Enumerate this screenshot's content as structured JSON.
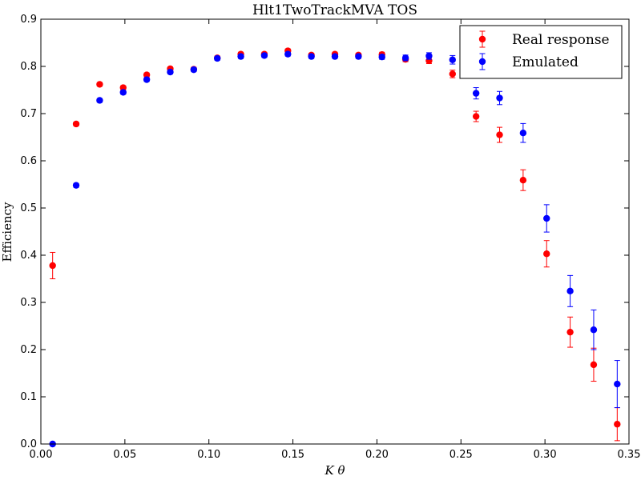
{
  "chart_data": {
    "type": "scatter",
    "title": "Hlt1TwoTrackMVA TOS",
    "xlabel": "K θ",
    "ylabel": "Efficiency",
    "xlim": [
      0.0,
      0.35
    ],
    "ylim": [
      0.0,
      0.9
    ],
    "x_ticks": [
      "0.00",
      "0.05",
      "0.10",
      "0.15",
      "0.20",
      "0.25",
      "0.30",
      "0.35"
    ],
    "y_ticks": [
      "0.0",
      "0.1",
      "0.2",
      "0.3",
      "0.4",
      "0.5",
      "0.6",
      "0.7",
      "0.8",
      "0.9"
    ],
    "grid": false,
    "legend_position": "top-right",
    "error_bars": true,
    "series": [
      {
        "name": "Real response",
        "color": "#ff0000",
        "x": [
          0.007,
          0.021,
          0.035,
          0.049,
          0.063,
          0.077,
          0.091,
          0.105,
          0.119,
          0.133,
          0.147,
          0.161,
          0.175,
          0.189,
          0.203,
          0.217,
          0.231,
          0.245,
          0.259,
          0.273,
          0.287,
          0.301,
          0.315,
          0.329,
          0.343
        ],
        "y": [
          0.378,
          0.678,
          0.762,
          0.755,
          0.782,
          0.795,
          0.794,
          0.818,
          0.826,
          0.826,
          0.833,
          0.824,
          0.826,
          0.824,
          0.825,
          0.815,
          0.812,
          0.784,
          0.694,
          0.655,
          0.559,
          0.403,
          0.237,
          0.168,
          0.042
        ],
        "err": [
          0.028,
          0.004,
          0.004,
          0.004,
          0.004,
          0.004,
          0.004,
          0.004,
          0.004,
          0.004,
          0.004,
          0.004,
          0.004,
          0.004,
          0.005,
          0.005,
          0.006,
          0.008,
          0.011,
          0.016,
          0.022,
          0.028,
          0.032,
          0.035,
          0.035
        ]
      },
      {
        "name": "Emulated",
        "color": "#0000ff",
        "x": [
          0.007,
          0.021,
          0.035,
          0.049,
          0.063,
          0.077,
          0.091,
          0.105,
          0.119,
          0.133,
          0.147,
          0.161,
          0.175,
          0.189,
          0.203,
          0.217,
          0.231,
          0.245,
          0.259,
          0.273,
          0.287,
          0.301,
          0.315,
          0.329,
          0.343
        ],
        "y": [
          0.0,
          0.548,
          0.728,
          0.745,
          0.772,
          0.788,
          0.793,
          0.817,
          0.821,
          0.823,
          0.826,
          0.821,
          0.821,
          0.821,
          0.82,
          0.818,
          0.822,
          0.814,
          0.743,
          0.733,
          0.659,
          0.478,
          0.324,
          0.242,
          0.127
        ],
        "err": [
          0.002,
          0.004,
          0.004,
          0.004,
          0.004,
          0.004,
          0.004,
          0.004,
          0.004,
          0.004,
          0.004,
          0.004,
          0.004,
          0.004,
          0.005,
          0.006,
          0.007,
          0.009,
          0.012,
          0.014,
          0.02,
          0.029,
          0.033,
          0.042,
          0.05
        ]
      }
    ]
  }
}
